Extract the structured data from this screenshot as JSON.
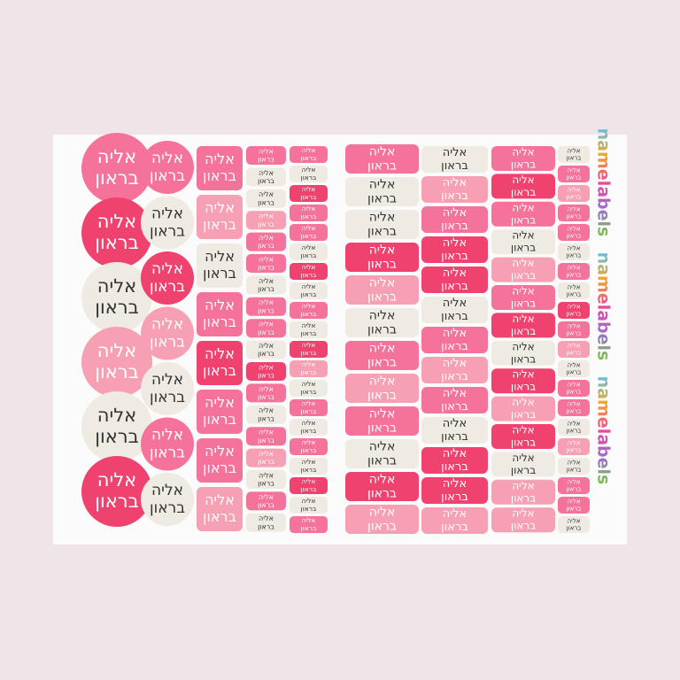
{
  "sheet": {
    "first_name": "אליה",
    "last_name": "בראון",
    "brand": "namelabels",
    "brand_colors": [
      "#5bc0e8",
      "#f5a623",
      "#e9489a",
      "#9b6fd0",
      "#7ac943"
    ],
    "columns": [
      {
        "shape": "circle",
        "colors": [
          "#f5739a",
          "#f0426f",
          "#efebe3",
          "#f7a0b3",
          "#efebe3",
          "#f0426f"
        ]
      },
      {
        "shape": "circle",
        "colors": [
          "#f5739a",
          "#efebe3",
          "#f0426f",
          "#f7a0b3",
          "#efebe3",
          "#f5739a",
          "#efebe3"
        ]
      },
      {
        "shape": "rect",
        "colors": [
          "#f5739a",
          "#f7a0b3",
          "#efebe3",
          "#f5739a",
          "#f0426f",
          "#f5739a",
          "#f5739a",
          "#f7a0b3"
        ]
      },
      {
        "shape": "rect",
        "colors": [
          "#f5739a",
          "#efebe3",
          "#efebe3",
          "#f7a0b3",
          "#f5739a",
          "#f5739a",
          "#efebe3",
          "#f5739a",
          "#f5739a",
          "#efebe3",
          "#f0426f",
          "#f5739a",
          "#efebe3",
          "#f5739a",
          "#f7a0b3",
          "#efebe3",
          "#f5739a",
          "#efebe3"
        ]
      },
      {
        "shape": "rect",
        "colors": [
          "#f5739a",
          "#efebe3",
          "#f0426f",
          "#f5739a",
          "#f5739a",
          "#efebe3",
          "#f0426f",
          "#efebe3",
          "#f5739a",
          "#efebe3",
          "#f0426f",
          "#f7a0b3",
          "#efebe3",
          "#f5739a",
          "#efebe3",
          "#f5739a",
          "#efebe3",
          "#f0426f",
          "#efebe3",
          "#f5739a"
        ]
      },
      {
        "shape": "rect",
        "colors": [
          "#f5739a",
          "#efebe3",
          "#efebe3",
          "#f0426f",
          "#f7a0b3",
          "#efebe3",
          "#f5739a",
          "#f7a0b3",
          "#f5739a",
          "#efebe3",
          "#f0426f",
          "#f7a0b3"
        ]
      },
      {
        "shape": "rect",
        "colors": [
          "#efebe3",
          "#f7a0b3",
          "#f5739a",
          "#f0426f",
          "#f0426f",
          "#efebe3",
          "#f5739a",
          "#f7a0b3",
          "#f5739a",
          "#efebe3",
          "#f0426f",
          "#f0426f",
          "#f7a0b3"
        ]
      },
      {
        "shape": "rect",
        "colors": [
          "#f5739a",
          "#f0426f",
          "#f5739a",
          "#efebe3",
          "#f7a0b3",
          "#f5739a",
          "#f0426f",
          "#efebe3",
          "#f0426f",
          "#f7a0b3",
          "#f0426f",
          "#efebe3",
          "#f7a0b3",
          "#f7a0b3"
        ]
      },
      {
        "shape": "rect",
        "colors": [
          "#efebe3",
          "#f5739a",
          "#f7a0b3",
          "#f5739a",
          "#f5739a",
          "#efebe3",
          "#f5739a",
          "#efebe3",
          "#f0426f",
          "#f5739a",
          "#f7a0b3",
          "#efebe3",
          "#f5739a",
          "#f5739a",
          "#efebe3",
          "#f7a0b3",
          "#efebe3",
          "#f5739a",
          "#f5739a",
          "#efebe3"
        ]
      }
    ]
  }
}
